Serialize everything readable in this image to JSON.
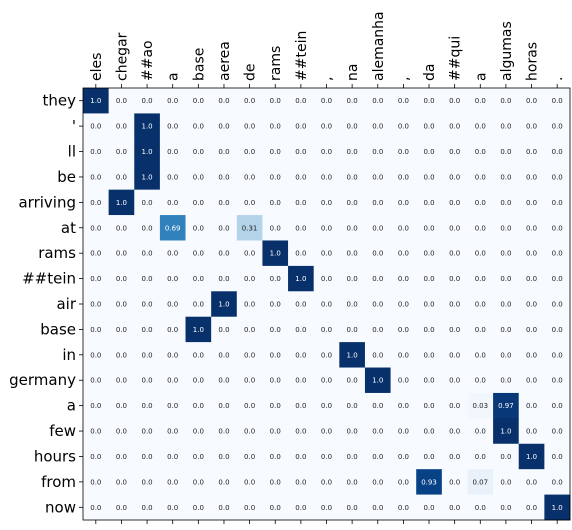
{
  "chart_data": {
    "type": "heatmap",
    "title": "",
    "xlabel": "",
    "ylabel": "",
    "x_position": "top",
    "colormap": "Blues",
    "value_range": [
      0,
      1
    ],
    "grid": false,
    "x": [
      "eles",
      "chegar",
      "##ao",
      "a",
      "base",
      "aerea",
      "de",
      "rams",
      "##tein",
      ",",
      "na",
      "alemanha",
      ",",
      "da",
      "##qui",
      "a",
      "algumas",
      "horas",
      "."
    ],
    "y": [
      "they",
      "'",
      "ll",
      "be",
      "arriving",
      "at",
      "rams",
      "##tein",
      "air",
      "base",
      "in",
      "germany",
      "a",
      "few",
      "hours",
      "from",
      "now"
    ],
    "values": [
      [
        1.0,
        0.0,
        0.0,
        0.0,
        0.0,
        0.0,
        0.0,
        0.0,
        0.0,
        0.0,
        0.0,
        0.0,
        0.0,
        0.0,
        0.0,
        0.0,
        0.0,
        0.0,
        0.0
      ],
      [
        0.0,
        0.0,
        1.0,
        0.0,
        0.0,
        0.0,
        0.0,
        0.0,
        0.0,
        0.0,
        0.0,
        0.0,
        0.0,
        0.0,
        0.0,
        0.0,
        0.0,
        0.0,
        0.0
      ],
      [
        0.0,
        0.0,
        1.0,
        0.0,
        0.0,
        0.0,
        0.0,
        0.0,
        0.0,
        0.0,
        0.0,
        0.0,
        0.0,
        0.0,
        0.0,
        0.0,
        0.0,
        0.0,
        0.0
      ],
      [
        0.0,
        0.0,
        1.0,
        0.0,
        0.0,
        0.0,
        0.0,
        0.0,
        0.0,
        0.0,
        0.0,
        0.0,
        0.0,
        0.0,
        0.0,
        0.0,
        0.0,
        0.0,
        0.0
      ],
      [
        0.0,
        1.0,
        0.0,
        0.0,
        0.0,
        0.0,
        0.0,
        0.0,
        0.0,
        0.0,
        0.0,
        0.0,
        0.0,
        0.0,
        0.0,
        0.0,
        0.0,
        0.0,
        0.0
      ],
      [
        0.0,
        0.0,
        0.0,
        0.69,
        0.0,
        0.0,
        0.31,
        0.0,
        0.0,
        0.0,
        0.0,
        0.0,
        0.0,
        0.0,
        0.0,
        0.0,
        0.0,
        0.0,
        0.0
      ],
      [
        0.0,
        0.0,
        0.0,
        0.0,
        0.0,
        0.0,
        0.0,
        1.0,
        0.0,
        0.0,
        0.0,
        0.0,
        0.0,
        0.0,
        0.0,
        0.0,
        0.0,
        0.0,
        0.0
      ],
      [
        0.0,
        0.0,
        0.0,
        0.0,
        0.0,
        0.0,
        0.0,
        0.0,
        1.0,
        0.0,
        0.0,
        0.0,
        0.0,
        0.0,
        0.0,
        0.0,
        0.0,
        0.0,
        0.0
      ],
      [
        0.0,
        0.0,
        0.0,
        0.0,
        0.0,
        1.0,
        0.0,
        0.0,
        0.0,
        0.0,
        0.0,
        0.0,
        0.0,
        0.0,
        0.0,
        0.0,
        0.0,
        0.0,
        0.0
      ],
      [
        0.0,
        0.0,
        0.0,
        0.0,
        1.0,
        0.0,
        0.0,
        0.0,
        0.0,
        0.0,
        0.0,
        0.0,
        0.0,
        0.0,
        0.0,
        0.0,
        0.0,
        0.0,
        0.0
      ],
      [
        0.0,
        0.0,
        0.0,
        0.0,
        0.0,
        0.0,
        0.0,
        0.0,
        0.0,
        0.0,
        1.0,
        0.0,
        0.0,
        0.0,
        0.0,
        0.0,
        0.0,
        0.0,
        0.0
      ],
      [
        0.0,
        0.0,
        0.0,
        0.0,
        0.0,
        0.0,
        0.0,
        0.0,
        0.0,
        0.0,
        0.0,
        1.0,
        0.0,
        0.0,
        0.0,
        0.0,
        0.0,
        0.0,
        0.0
      ],
      [
        0.0,
        0.0,
        0.0,
        0.0,
        0.0,
        0.0,
        0.0,
        0.0,
        0.0,
        0.0,
        0.0,
        0.0,
        0.0,
        0.0,
        0.0,
        0.03,
        0.97,
        0.0,
        0.0
      ],
      [
        0.0,
        0.0,
        0.0,
        0.0,
        0.0,
        0.0,
        0.0,
        0.0,
        0.0,
        0.0,
        0.0,
        0.0,
        0.0,
        0.0,
        0.0,
        0.0,
        1.0,
        0.0,
        0.0
      ],
      [
        0.0,
        0.0,
        0.0,
        0.0,
        0.0,
        0.0,
        0.0,
        0.0,
        0.0,
        0.0,
        0.0,
        0.0,
        0.0,
        0.0,
        0.0,
        0.0,
        0.0,
        1.0,
        0.0
      ],
      [
        0.0,
        0.0,
        0.0,
        0.0,
        0.0,
        0.0,
        0.0,
        0.0,
        0.0,
        0.0,
        0.0,
        0.0,
        0.0,
        0.93,
        0.0,
        0.07,
        0.0,
        0.0,
        0.0
      ],
      [
        0.0,
        0.0,
        0.0,
        0.0,
        0.0,
        0.0,
        0.0,
        0.0,
        0.0,
        0.0,
        0.0,
        0.0,
        0.0,
        0.0,
        0.0,
        0.0,
        0.0,
        0.0,
        1.0
      ]
    ]
  }
}
